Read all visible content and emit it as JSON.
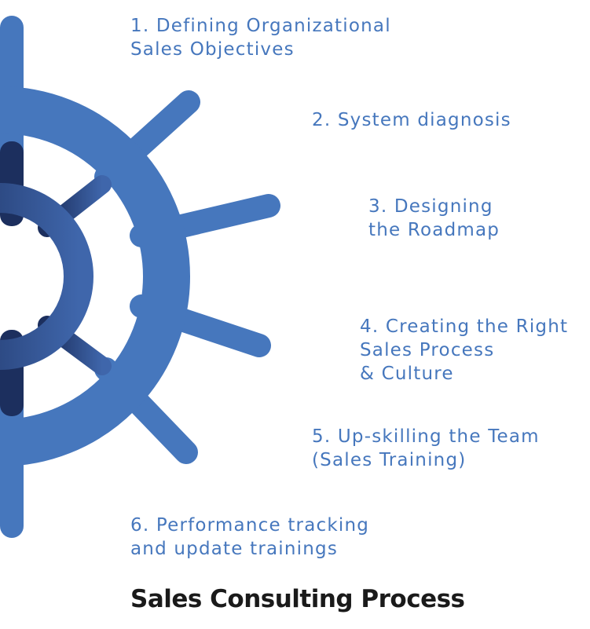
{
  "diagram": {
    "title": "Sales Consulting Process",
    "colors": {
      "wheel_outer": "#4677bd",
      "hub_dark": "#1c2f5e",
      "hub_light": "#3a5fa3",
      "label_text": "#4677bd",
      "title_text": "#1a1a1a"
    },
    "icon": "ship-helm-wheel",
    "steps": [
      {
        "lines": [
          "1. Defining Organizational",
          "Sales Objectives"
        ]
      },
      {
        "lines": [
          "2. System diagnosis"
        ]
      },
      {
        "lines": [
          "3. Designing",
          "the Roadmap"
        ]
      },
      {
        "lines": [
          "4. Creating the Right",
          "Sales Process",
          "& Culture"
        ]
      },
      {
        "lines": [
          "5. Up-skilling the Team",
          "(Sales Training)"
        ]
      },
      {
        "lines": [
          "6. Performance tracking",
          "and update trainings"
        ]
      }
    ]
  }
}
